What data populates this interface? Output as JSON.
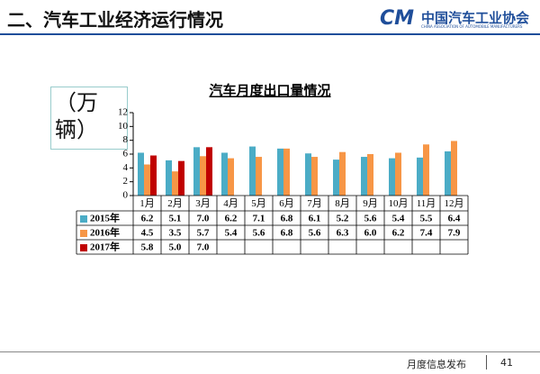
{
  "header": {
    "title": "二、汽车工业经济运行情况",
    "logo": {
      "mark": "CM",
      "name": "中国汽车工业协会",
      "english": "CHINA ASSOCIATION OF AUTOMOBILE MANUFACTURERS"
    }
  },
  "footer": {
    "label": "月度信息发布",
    "page": "41"
  },
  "chart_data": {
    "type": "bar",
    "title": "汽车月度出口量情况",
    "y_label": "（万辆）",
    "categories": [
      "1月",
      "2月",
      "3月",
      "4月",
      "5月",
      "6月",
      "7月",
      "8月",
      "9月",
      "10月",
      "11月",
      "12月"
    ],
    "series": [
      {
        "name": "2015年",
        "color": "#4bacc6",
        "values": [
          6.2,
          5.1,
          7.0,
          6.2,
          7.1,
          6.8,
          6.1,
          5.2,
          5.6,
          5.4,
          5.5,
          6.4
        ],
        "value_labels": [
          "6.2",
          "5.1",
          "7.0",
          "6.2",
          "7.1",
          "6.8",
          "6.1",
          "5.2",
          "5.6",
          "5.4",
          "5.5",
          "6.4"
        ]
      },
      {
        "name": "2016年",
        "color": "#f79646",
        "values": [
          4.5,
          3.5,
          5.7,
          5.4,
          5.6,
          6.8,
          5.6,
          6.3,
          6.0,
          6.2,
          7.4,
          7.9
        ],
        "value_labels": [
          "4.5",
          "3.5",
          "5.7",
          "5.4",
          "5.6",
          "6.8",
          "5.6",
          "6.3",
          "6.0",
          "6.2",
          "7.4",
          "7.9"
        ]
      },
      {
        "name": "2017年",
        "color": "#c00000",
        "values": [
          5.8,
          5.0,
          7.0,
          null,
          null,
          null,
          null,
          null,
          null,
          null,
          null,
          null
        ],
        "value_labels": [
          "5.8",
          "5.0",
          "7.0",
          null,
          null,
          null,
          null,
          null,
          null,
          null,
          null,
          null
        ]
      }
    ],
    "ylim": [
      0,
      12
    ],
    "yticks": [
      0,
      2,
      4,
      6,
      8,
      10,
      12
    ]
  }
}
